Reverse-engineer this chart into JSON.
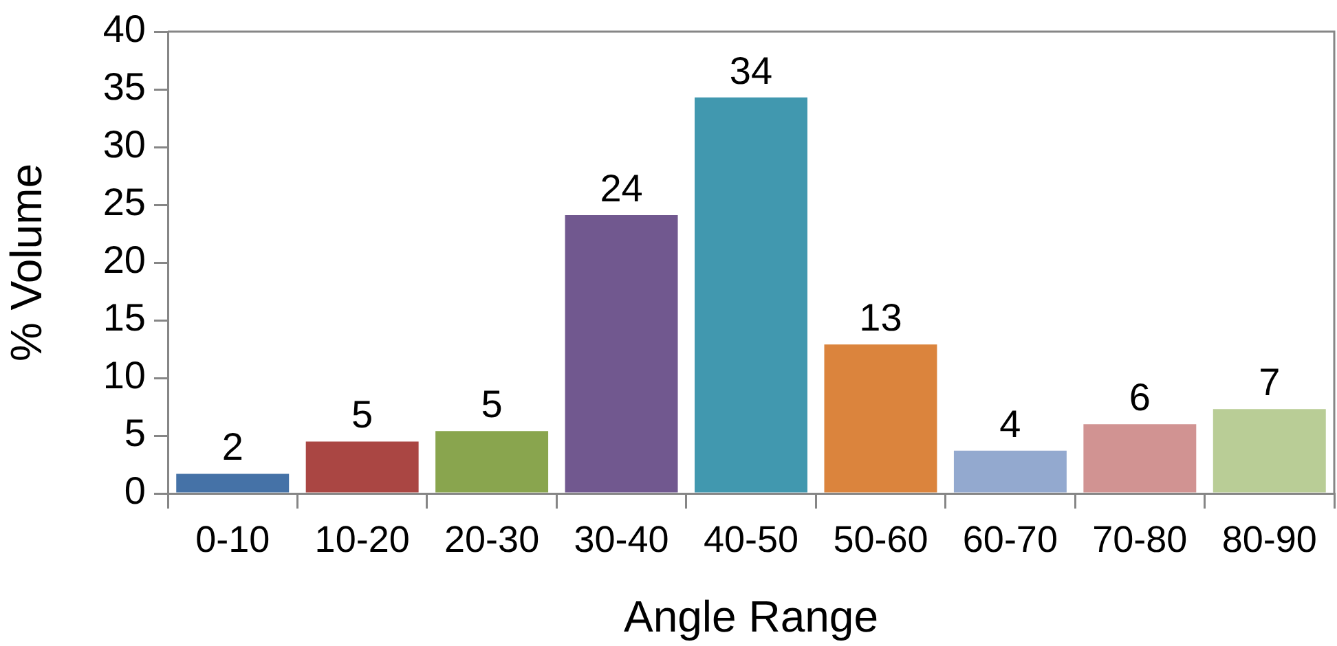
{
  "chart_data": {
    "type": "bar",
    "xlabel": "Angle Range",
    "ylabel": "% Volume",
    "categories": [
      "0-10",
      "10-20",
      "20-30",
      "30-40",
      "40-50",
      "50-60",
      "60-70",
      "70-80",
      "80-90"
    ],
    "values": [
      1.7,
      4.5,
      5.4,
      24.1,
      34.3,
      12.9,
      3.7,
      6.0,
      7.3
    ],
    "colors": [
      "#4572a7",
      "#aa4643",
      "#89a54e",
      "#71588f",
      "#4198af",
      "#db843d",
      "#93a9cf",
      "#d19392",
      "#b9cd96"
    ],
    "value_labels": [
      "2",
      "5",
      "5",
      "24",
      "34",
      "13",
      "4",
      "6",
      "7"
    ],
    "ylim": [
      0,
      40
    ],
    "yticks": [
      0,
      5,
      10,
      15,
      20,
      25,
      30,
      35,
      40
    ]
  }
}
